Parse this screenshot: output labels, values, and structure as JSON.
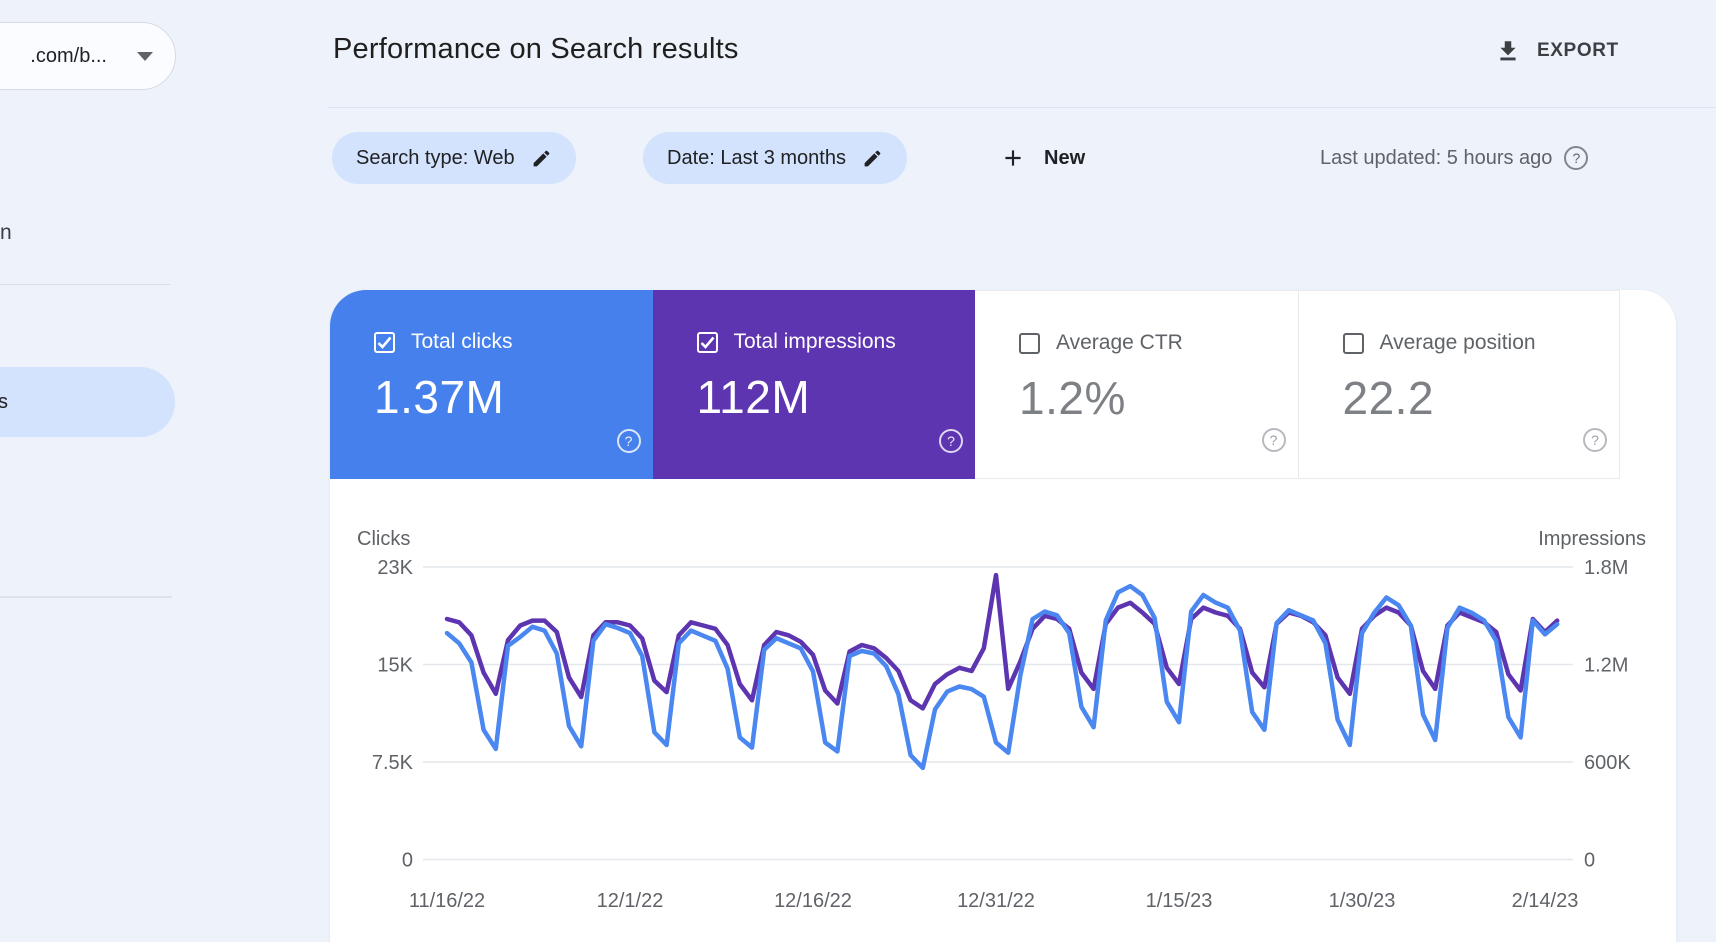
{
  "sidebar": {
    "property_label": ".com/b...",
    "nav_item_fragment": "n",
    "selected_item_fragment": "s"
  },
  "header": {
    "title": "Performance on Search results",
    "export_label": "EXPORT"
  },
  "filters": {
    "search_type_chip": "Search type: Web",
    "date_chip": "Date: Last 3 months",
    "new_label": "New",
    "last_updated": "Last updated: 5 hours ago",
    "help_icon_glyph": "?"
  },
  "metrics": {
    "cards": [
      {
        "label": "Total clicks",
        "value": "1.37M",
        "checked": true,
        "bg": "#4580ec",
        "fg": "#ffffff"
      },
      {
        "label": "Total impressions",
        "value": "112M",
        "checked": true,
        "bg": "#5e35b1",
        "fg": "#ffffff"
      },
      {
        "label": "Average CTR",
        "value": "1.2%",
        "checked": false,
        "bg": "#ffffff",
        "fg": "#7d8084"
      },
      {
        "label": "Average position",
        "value": "22.2",
        "checked": false,
        "bg": "#ffffff",
        "fg": "#7d8084"
      }
    ]
  },
  "chart_data": {
    "type": "line",
    "x_labels": [
      "11/16/22",
      "12/1/22",
      "12/16/22",
      "12/31/22",
      "1/15/23",
      "1/30/23",
      "2/14/23"
    ],
    "left_axis": {
      "title": "Clicks",
      "ticks_top_down": [
        "23K",
        "15K",
        "7.5K",
        "0"
      ],
      "max": 23,
      "unit": "thousand clicks per day"
    },
    "right_axis": {
      "title": "Impressions",
      "ticks_top_down": [
        "1.8M",
        "1.2M",
        "600K",
        "0"
      ],
      "max": 1.8,
      "unit": "million impressions per day"
    },
    "grid": true,
    "legend_position": "none",
    "series": [
      {
        "name": "Impressions",
        "axis": "right",
        "color": "#5e35b1",
        "values": [
          1.48,
          1.46,
          1.38,
          1.15,
          1.02,
          1.35,
          1.44,
          1.47,
          1.47,
          1.4,
          1.12,
          1.0,
          1.38,
          1.46,
          1.46,
          1.44,
          1.36,
          1.1,
          1.03,
          1.38,
          1.46,
          1.44,
          1.42,
          1.32,
          1.08,
          0.98,
          1.32,
          1.4,
          1.38,
          1.34,
          1.26,
          1.04,
          0.96,
          1.28,
          1.32,
          1.3,
          1.24,
          1.16,
          0.98,
          0.93,
          1.08,
          1.14,
          1.18,
          1.16,
          1.3,
          1.75,
          1.05,
          1.22,
          1.42,
          1.5,
          1.48,
          1.42,
          1.15,
          1.05,
          1.45,
          1.55,
          1.58,
          1.52,
          1.45,
          1.18,
          1.08,
          1.48,
          1.55,
          1.52,
          1.5,
          1.42,
          1.15,
          1.06,
          1.45,
          1.52,
          1.5,
          1.46,
          1.38,
          1.12,
          1.02,
          1.42,
          1.5,
          1.55,
          1.52,
          1.44,
          1.16,
          1.05,
          1.44,
          1.52,
          1.49,
          1.46,
          1.4,
          1.14,
          1.04,
          1.48,
          1.4,
          1.47
        ]
      },
      {
        "name": "Clicks",
        "axis": "left",
        "color": "#4a87f0",
        "values": [
          17.8,
          17.0,
          15.5,
          10.2,
          8.7,
          16.8,
          17.5,
          18.3,
          18.0,
          16.2,
          10.5,
          8.9,
          17.2,
          18.5,
          18.2,
          17.8,
          16.0,
          10.0,
          9.0,
          17.0,
          18.0,
          17.6,
          17.2,
          15.0,
          9.6,
          8.8,
          16.5,
          17.4,
          17.0,
          16.6,
          14.8,
          9.2,
          8.5,
          16.0,
          16.4,
          16.2,
          15.2,
          13.0,
          8.2,
          7.2,
          11.8,
          13.2,
          13.6,
          13.4,
          12.8,
          9.2,
          8.4,
          14.5,
          18.9,
          19.5,
          19.2,
          17.8,
          12.0,
          10.4,
          18.8,
          21.0,
          21.5,
          20.8,
          19.0,
          12.4,
          10.8,
          19.5,
          20.8,
          20.2,
          19.8,
          18.0,
          11.6,
          10.2,
          18.6,
          19.6,
          19.2,
          18.8,
          17.0,
          11.0,
          9.0,
          17.8,
          19.4,
          20.6,
          20.0,
          18.4,
          11.4,
          9.4,
          18.2,
          19.8,
          19.4,
          18.8,
          17.2,
          11.2,
          9.6,
          18.8,
          17.7,
          18.5
        ]
      }
    ]
  }
}
